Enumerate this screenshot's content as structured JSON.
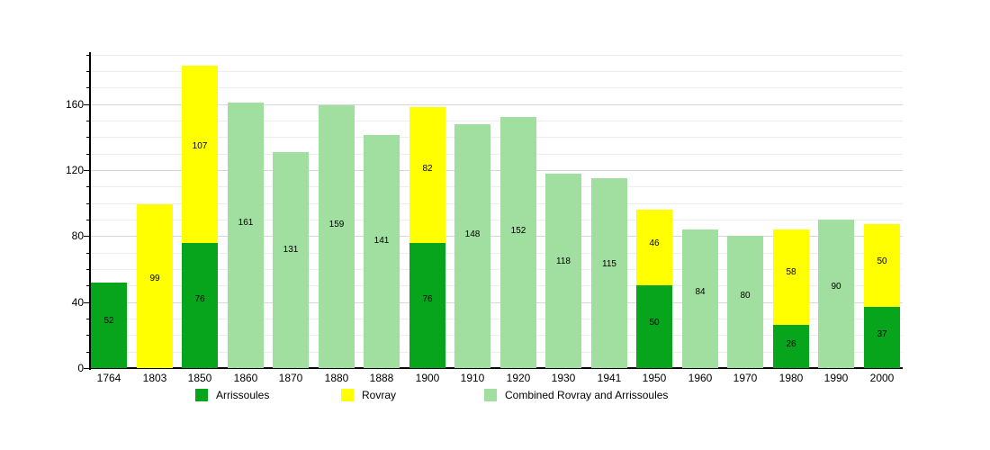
{
  "chart_data": {
    "type": "bar",
    "stacked": true,
    "title": "",
    "categories": [
      "1764",
      "1803",
      "1850",
      "1860",
      "1870",
      "1880",
      "1888",
      "1900",
      "1910",
      "1920",
      "1930",
      "1941",
      "1950",
      "1960",
      "1970",
      "1980",
      "1990",
      "2000"
    ],
    "series": [
      {
        "name": "Arrissoules",
        "color": "#07a51c",
        "values": [
          52,
          null,
          76,
          null,
          null,
          null,
          null,
          76,
          null,
          null,
          null,
          null,
          50,
          null,
          null,
          26,
          null,
          37
        ]
      },
      {
        "name": "Rovray",
        "color": "#ffff00",
        "values": [
          null,
          99,
          107,
          null,
          null,
          null,
          null,
          82,
          null,
          null,
          null,
          null,
          46,
          null,
          null,
          58,
          null,
          50
        ]
      },
      {
        "name": "Combined Rovray and Arrissoules",
        "color": "#a0df9f",
        "values": [
          null,
          null,
          null,
          161,
          131,
          159,
          141,
          null,
          148,
          152,
          118,
          115,
          null,
          84,
          80,
          null,
          90,
          null
        ]
      }
    ],
    "ylim": [
      0,
      191
    ],
    "yticks": [
      0,
      40,
      80,
      120,
      160
    ],
    "minor_grid_step": 10,
    "grid": true,
    "value_labels": true,
    "legend_position": "bottom"
  },
  "colors": {
    "background": "#ffffff",
    "axis": "#000000",
    "grid_minor": "#ededed",
    "grid_major": "#d8d8d8",
    "text": "#000000"
  }
}
